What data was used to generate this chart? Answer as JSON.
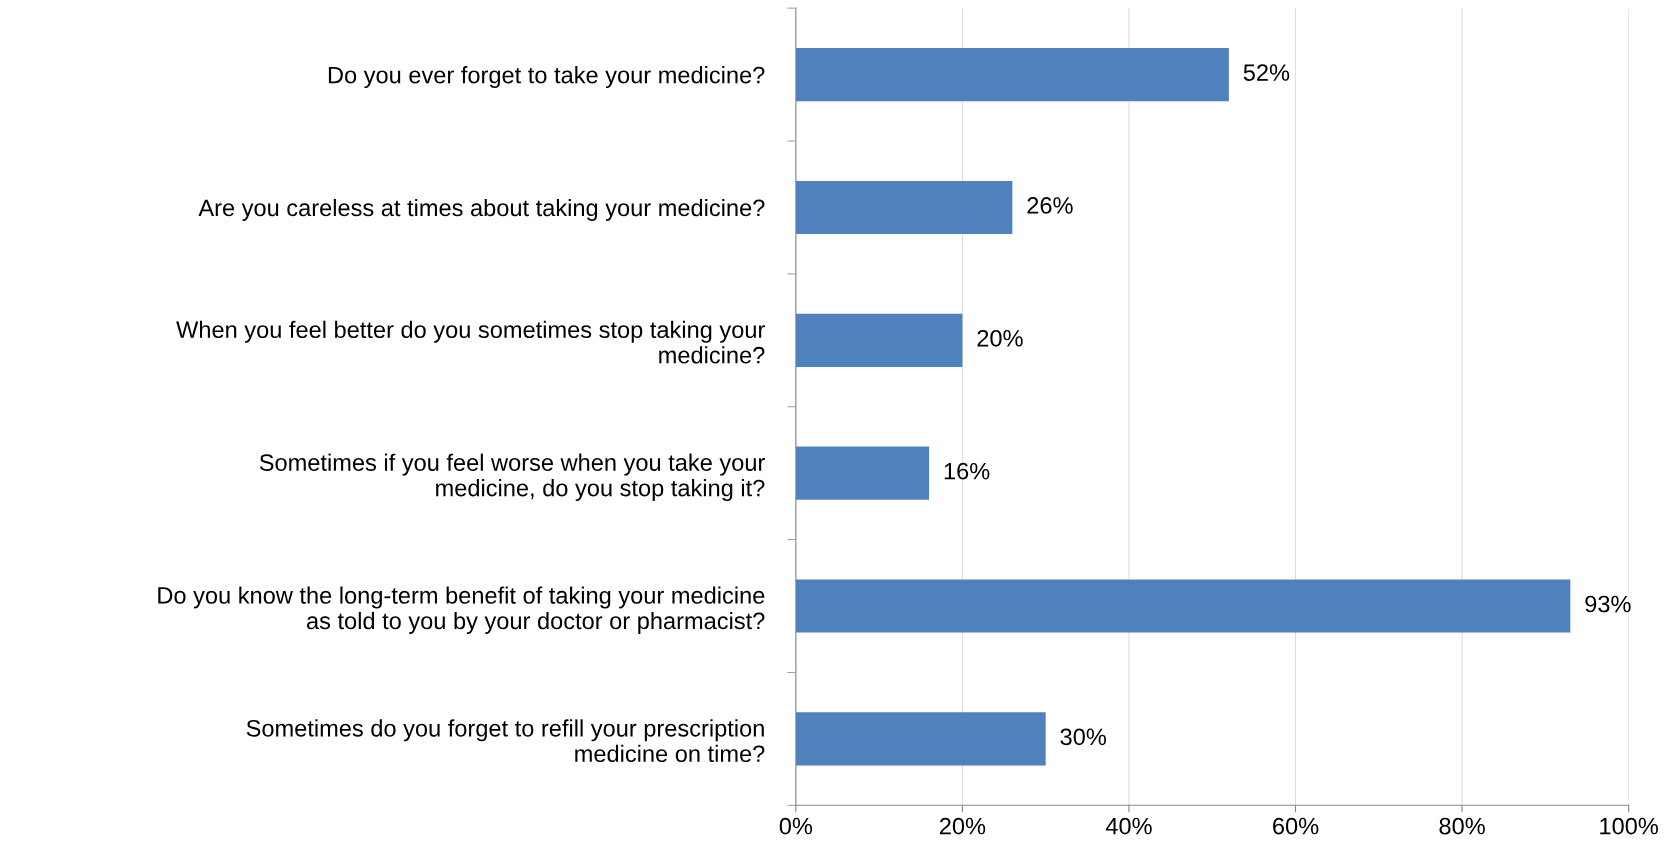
{
  "chart_data": {
    "type": "bar",
    "orientation": "horizontal",
    "categories": [
      "Do you ever forget to take your medicine?",
      "Are you careless at times about taking your medicine?",
      "When you feel better do you sometimes stop taking your\nmedicine?",
      "Sometimes if you feel worse when you take your\nmedicine, do you stop taking it?",
      "Do you know the long-term benefit of taking your medicine\nas told to you by your doctor or pharmacist?",
      "Sometimes do you forget to refill your prescription\nmedicine on time?"
    ],
    "values": [
      52,
      26,
      20,
      16,
      93,
      30
    ],
    "value_labels": [
      "52%",
      "26%",
      "20%",
      "16%",
      "93%",
      "30%"
    ],
    "color": "#4f81bd",
    "xlim": [
      0,
      100
    ],
    "xticks": [
      {
        "value": 0,
        "label": "0%"
      },
      {
        "value": 20,
        "label": "20%"
      },
      {
        "value": 40,
        "label": "40%"
      },
      {
        "value": 60,
        "label": "60%"
      },
      {
        "value": 80,
        "label": "80%"
      },
      {
        "value": 100,
        "label": "100%"
      }
    ],
    "grid": "x",
    "legend": false
  }
}
